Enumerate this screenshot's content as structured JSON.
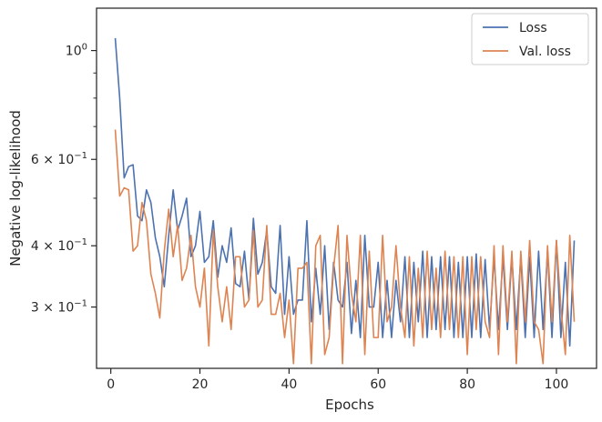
{
  "chart_data": {
    "type": "line",
    "xlabel": "Epochs",
    "ylabel": "Negative log-likelihood",
    "yscale": "log",
    "xlim": [
      -3.2,
      109
    ],
    "ylim": [
      0.225,
      1.22
    ],
    "x_ticks": [
      0,
      20,
      40,
      60,
      80,
      100
    ],
    "x_tick_labels": [
      "0",
      "20",
      "40",
      "60",
      "80",
      "100"
    ],
    "y_ticks": [
      0.3,
      0.4,
      0.6,
      1.0
    ],
    "y_tick_labels": [
      {
        "base": "3 × 10",
        "exp": "−1"
      },
      {
        "base": "4 × 10",
        "exp": "−1"
      },
      {
        "base": "6 × 10",
        "exp": "−1"
      },
      {
        "base": "10",
        "exp": "0"
      }
    ],
    "y_minor_ticks": [
      0.5,
      0.7,
      0.8,
      0.9
    ],
    "grid": false,
    "legend_position": "top-right",
    "x": [
      1,
      2,
      3,
      4,
      5,
      6,
      7,
      8,
      9,
      10,
      11,
      12,
      13,
      14,
      15,
      16,
      17,
      18,
      19,
      20,
      21,
      22,
      23,
      24,
      25,
      26,
      27,
      28,
      29,
      30,
      31,
      32,
      33,
      34,
      35,
      36,
      37,
      38,
      39,
      40,
      41,
      42,
      43,
      44,
      45,
      46,
      47,
      48,
      49,
      50,
      51,
      52,
      53,
      54,
      55,
      56,
      57,
      58,
      59,
      60,
      61,
      62,
      63,
      64,
      65,
      66,
      67,
      68,
      69,
      70,
      71,
      72,
      73,
      74,
      75,
      76,
      77,
      78,
      79,
      80,
      81,
      82,
      83,
      84,
      85,
      86,
      87,
      88,
      89,
      90,
      91,
      92,
      93,
      94,
      95,
      96,
      97,
      98,
      99,
      100,
      101,
      102,
      103,
      104
    ],
    "series": [
      {
        "name": "Loss",
        "color": "#4c72b0",
        "values": [
          1.06,
          0.8,
          0.55,
          0.58,
          0.585,
          0.46,
          0.45,
          0.52,
          0.49,
          0.415,
          0.38,
          0.33,
          0.42,
          0.52,
          0.43,
          0.46,
          0.5,
          0.38,
          0.4,
          0.47,
          0.37,
          0.38,
          0.45,
          0.345,
          0.4,
          0.37,
          0.435,
          0.335,
          0.33,
          0.39,
          0.31,
          0.455,
          0.35,
          0.37,
          0.43,
          0.33,
          0.32,
          0.44,
          0.29,
          0.38,
          0.29,
          0.31,
          0.31,
          0.45,
          0.28,
          0.36,
          0.29,
          0.4,
          0.27,
          0.37,
          0.31,
          0.3,
          0.37,
          0.265,
          0.34,
          0.26,
          0.42,
          0.3,
          0.3,
          0.37,
          0.26,
          0.34,
          0.26,
          0.34,
          0.28,
          0.38,
          0.26,
          0.37,
          0.28,
          0.39,
          0.26,
          0.38,
          0.27,
          0.38,
          0.27,
          0.38,
          0.26,
          0.37,
          0.26,
          0.38,
          0.26,
          0.385,
          0.26,
          0.375,
          0.27,
          0.38,
          0.27,
          0.38,
          0.27,
          0.38,
          0.27,
          0.38,
          0.26,
          0.38,
          0.26,
          0.39,
          0.27,
          0.39,
          0.26,
          0.41,
          0.26,
          0.37,
          0.25,
          0.41
        ]
      },
      {
        "name": "Val. loss",
        "color": "#dd8452",
        "values": [
          0.69,
          0.505,
          0.525,
          0.52,
          0.39,
          0.4,
          0.49,
          0.45,
          0.35,
          0.32,
          0.285,
          0.39,
          0.475,
          0.38,
          0.44,
          0.34,
          0.36,
          0.42,
          0.33,
          0.3,
          0.36,
          0.25,
          0.43,
          0.33,
          0.28,
          0.33,
          0.27,
          0.38,
          0.38,
          0.3,
          0.31,
          0.43,
          0.3,
          0.31,
          0.44,
          0.29,
          0.29,
          0.32,
          0.26,
          0.31,
          0.23,
          0.36,
          0.36,
          0.37,
          0.23,
          0.4,
          0.42,
          0.24,
          0.26,
          0.36,
          0.44,
          0.23,
          0.42,
          0.32,
          0.28,
          0.42,
          0.24,
          0.39,
          0.26,
          0.26,
          0.42,
          0.28,
          0.3,
          0.4,
          0.3,
          0.26,
          0.38,
          0.25,
          0.36,
          0.26,
          0.39,
          0.27,
          0.36,
          0.26,
          0.39,
          0.27,
          0.38,
          0.26,
          0.38,
          0.24,
          0.38,
          0.27,
          0.38,
          0.28,
          0.26,
          0.4,
          0.24,
          0.4,
          0.28,
          0.39,
          0.23,
          0.39,
          0.28,
          0.41,
          0.28,
          0.27,
          0.23,
          0.4,
          0.28,
          0.41,
          0.3,
          0.24,
          0.42,
          0.28
        ]
      }
    ]
  }
}
